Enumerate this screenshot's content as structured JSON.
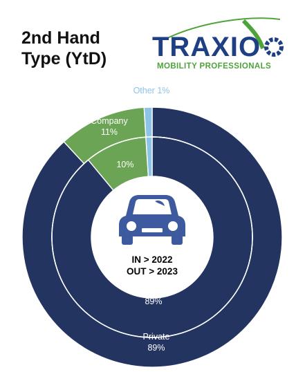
{
  "title": {
    "line1": "2nd Hand",
    "line2": "Type (YtD)"
  },
  "logo": {
    "word": "TRAXIO",
    "tagline": "MOBILITY PROFESSIONALS",
    "icon": "gear-logo-icon",
    "color_primary": "#1f3f85",
    "color_accent": "#4ea33a"
  },
  "center": {
    "icon": "car-icon",
    "line1": "IN > 2022",
    "line2": "OUT > 2023"
  },
  "chart_data": {
    "type": "pie",
    "style": "nested-donut",
    "categories": [
      "Private",
      "Company",
      "Other"
    ],
    "series": [
      {
        "ring": "outer",
        "period": "2023",
        "values": [
          89,
          11,
          1
        ]
      },
      {
        "ring": "inner",
        "period": "2022",
        "values": [
          89,
          10,
          1
        ]
      }
    ],
    "colors": {
      "Private": "#22345f",
      "Company": "#6aa454",
      "Other": "#8cc4e8"
    },
    "labels": {
      "outer_private": {
        "name": "Private",
        "value": "89%"
      },
      "outer_company": {
        "name": "Company",
        "value": "11%"
      },
      "outer_other": {
        "name": "Other",
        "value": "1%"
      },
      "inner_private": "89%",
      "inner_company": "10%"
    }
  }
}
